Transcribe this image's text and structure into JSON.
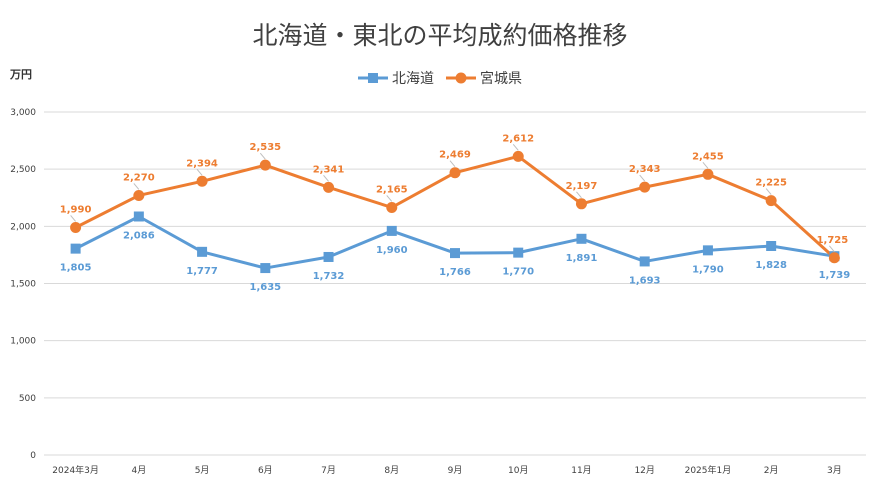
{
  "chart_data": {
    "type": "line",
    "title": "北海道・東北の平均成約価格推移",
    "ylabel": "万円",
    "xlabel": "",
    "ylim": [
      0,
      3000
    ],
    "yticks": [
      0,
      500,
      1000,
      1500,
      2000,
      2500,
      3000
    ],
    "ytick_labels": [
      "0",
      "500",
      "1,000",
      "1,500",
      "2,000",
      "2,500",
      "3,000"
    ],
    "grid": true,
    "legend_position": "top-center",
    "categories": [
      "2024年3月",
      "4月",
      "5月",
      "6月",
      "7月",
      "8月",
      "9月",
      "10月",
      "11月",
      "12月",
      "2025年1月",
      "2月",
      "3月"
    ],
    "series": [
      {
        "name": "北海道",
        "color": "#5b9bd5",
        "marker": "square",
        "values": [
          1805,
          2086,
          1777,
          1635,
          1732,
          1960,
          1766,
          1770,
          1891,
          1693,
          1790,
          1828,
          1739
        ],
        "labels": [
          "1,805",
          "2,086",
          "1,777",
          "1,635",
          "1,732",
          "1,960",
          "1,766",
          "1,770",
          "1,891",
          "1,693",
          "1,790",
          "1,828",
          "1,739"
        ]
      },
      {
        "name": "宮城県",
        "color": "#ed7d31",
        "marker": "circle",
        "values": [
          1990,
          2270,
          2394,
          2535,
          2341,
          2165,
          2469,
          2612,
          2197,
          2343,
          2455,
          2225,
          1725
        ],
        "labels": [
          "1,990",
          "2,270",
          "2,394",
          "2,535",
          "2,341",
          "2,165",
          "2,469",
          "2,612",
          "2,197",
          "2,343",
          "2,455",
          "2,225",
          "1,725"
        ]
      }
    ]
  }
}
